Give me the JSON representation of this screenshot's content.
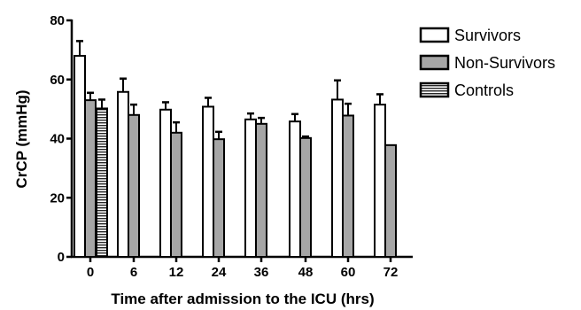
{
  "chart_data": {
    "type": "bar",
    "xlabel": "Time after admission to the ICU (hrs)",
    "ylabel": "CrCP (mmHg)",
    "ylim": [
      0,
      80
    ],
    "yticks": [
      "0",
      "20",
      "40",
      "60",
      "80"
    ],
    "categories": [
      "0",
      "6",
      "12",
      "24",
      "36",
      "48",
      "60",
      "72"
    ],
    "series": [
      {
        "name": "Survivors",
        "fill": "#ffffff",
        "pattern": "none",
        "values": [
          68,
          55.8,
          49.8,
          50.8,
          46.5,
          45.8,
          53.2,
          51.5
        ],
        "errors": [
          5,
          4.5,
          2.5,
          3,
          2,
          2.5,
          6.5,
          3.5
        ]
      },
      {
        "name": "Non-Survivors",
        "fill": "#a6a6a6",
        "pattern": "none",
        "values": [
          53,
          48,
          42,
          39.8,
          45,
          40.2,
          47.8,
          37.8
        ],
        "errors": [
          2.5,
          3.5,
          3.5,
          2.5,
          2,
          0.5,
          4,
          0
        ]
      },
      {
        "name": "Controls",
        "fill": "#ffffff",
        "pattern": "horizontal-lines",
        "values": [
          50.2,
          null,
          null,
          null,
          null,
          null,
          null,
          null
        ],
        "errors": [
          3,
          null,
          null,
          null,
          null,
          null,
          null,
          null
        ]
      }
    ],
    "legend_position": "top-right",
    "grid": false
  }
}
